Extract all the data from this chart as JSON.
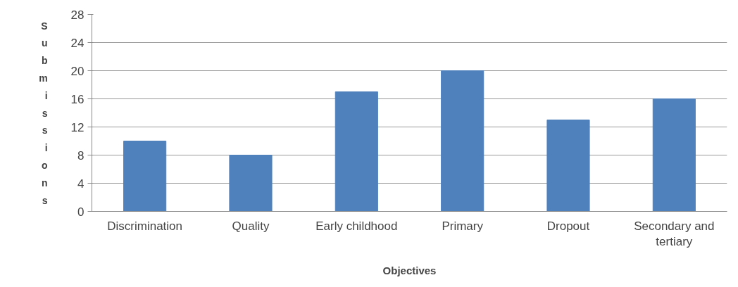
{
  "chart_data": {
    "type": "bar",
    "xlabel": "Objectives",
    "ylabel": "Submissions",
    "categories": [
      "Discrimination",
      "Quality",
      "Early childhood",
      "Primary",
      "Dropout",
      "Secondary and tertiary"
    ],
    "values": [
      10,
      8,
      17,
      20,
      13,
      16
    ],
    "color": "#4f81bd",
    "ylim": [
      0,
      28
    ],
    "yticks": [
      0,
      4,
      8,
      12,
      16,
      20,
      24,
      28
    ],
    "grid": "y"
  }
}
